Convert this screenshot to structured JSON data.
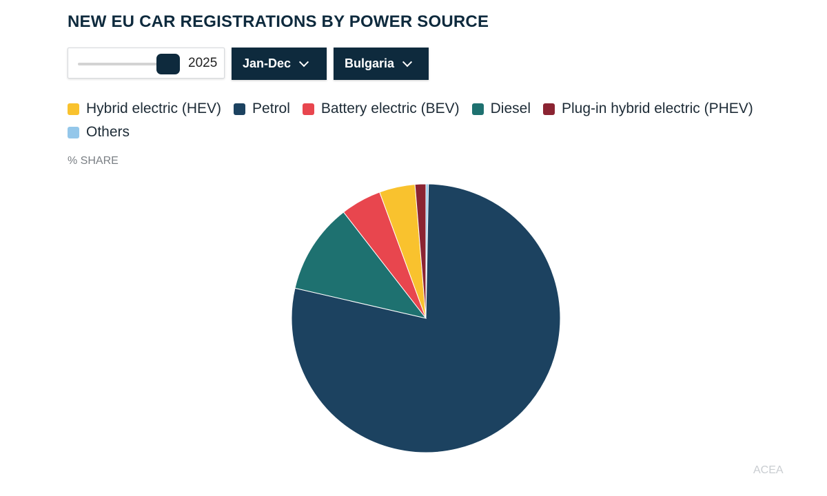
{
  "header": {
    "title": "NEW EU CAR REGISTRATIONS BY POWER SOURCE"
  },
  "controls": {
    "year": "2025",
    "period": "Jan-Dec",
    "country": "Bulgaria"
  },
  "unit_label": "% SHARE",
  "credit": "ACEA",
  "colors": {
    "hev": "#f9c22e",
    "petrol": "#1c4260",
    "bev": "#e8464e",
    "diesel": "#1e7170",
    "phev": "#8b2432",
    "others": "#94c7ea"
  },
  "chart_data": {
    "type": "pie",
    "categories": [
      "Hybrid electric (HEV)",
      "Petrol",
      "Battery electric (BEV)",
      "Diesel",
      "Plug-in hybrid electric (PHEV)",
      "Others"
    ],
    "series": [
      {
        "values": [
          4.3,
          78.3,
          4.9,
          10.9,
          1.3,
          0.3
        ]
      }
    ],
    "legend_position": "top",
    "slice_order_clockwise_from_top": [
      "Others",
      "Petrol",
      "Diesel",
      "Battery electric (BEV)",
      "Hybrid electric (HEV)",
      "Plug-in hybrid electric (PHEV)"
    ]
  }
}
